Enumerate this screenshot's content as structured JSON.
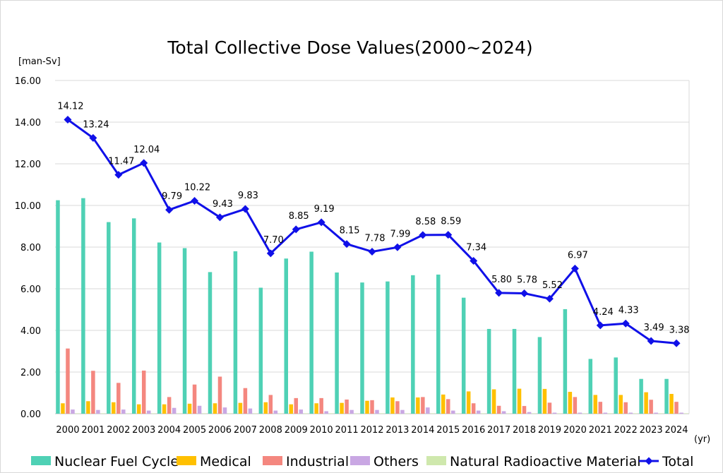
{
  "chart_data": {
    "type": "bar",
    "title": "Total Collective Dose Values(2000~2024)",
    "ylabel": "[man-Sv]",
    "xlabel": "(yr)",
    "ylim": [
      0,
      16
    ],
    "yticks": [
      "0.00",
      "2.00",
      "4.00",
      "6.00",
      "8.00",
      "10.00",
      "12.00",
      "14.00",
      "16.00"
    ],
    "categories": [
      "2000",
      "2001",
      "2002",
      "2003",
      "2004",
      "2005",
      "2006",
      "2007",
      "2008",
      "2009",
      "2010",
      "2011",
      "2012",
      "2013",
      "2014",
      "2015",
      "2016",
      "2017",
      "2018",
      "2019",
      "2020",
      "2021",
      "2022",
      "2023",
      "2024"
    ],
    "series": [
      {
        "name": "Nuclear Fuel Cycle",
        "type": "bar",
        "color": "#4fd1b5",
        "values": [
          10.25,
          10.35,
          9.2,
          9.38,
          8.22,
          7.95,
          6.8,
          7.8,
          6.05,
          7.45,
          7.78,
          6.78,
          6.3,
          6.35,
          6.65,
          6.68,
          5.57,
          4.07,
          4.07,
          3.68,
          5.02,
          2.63,
          2.7,
          1.67,
          1.67
        ]
      },
      {
        "name": "Medical",
        "type": "bar",
        "color": "#ffc000",
        "values": [
          0.5,
          0.6,
          0.55,
          0.45,
          0.45,
          0.48,
          0.5,
          0.52,
          0.55,
          0.45,
          0.5,
          0.52,
          0.62,
          0.78,
          0.78,
          0.92,
          1.07,
          1.17,
          1.2,
          1.19,
          1.05,
          0.9,
          0.9,
          1.03,
          0.95
        ]
      },
      {
        "name": "Industrial",
        "type": "bar",
        "color": "#f4877f",
        "values": [
          3.13,
          2.06,
          1.48,
          2.07,
          0.8,
          1.4,
          1.78,
          1.23,
          0.9,
          0.75,
          0.75,
          0.68,
          0.65,
          0.6,
          0.8,
          0.7,
          0.5,
          0.38,
          0.37,
          0.53,
          0.8,
          0.57,
          0.55,
          0.67,
          0.57
        ]
      },
      {
        "name": "Others",
        "type": "bar",
        "color": "#c9a7e3",
        "values": [
          0.2,
          0.18,
          0.2,
          0.15,
          0.28,
          0.38,
          0.3,
          0.25,
          0.15,
          0.2,
          0.12,
          0.18,
          0.18,
          0.18,
          0.3,
          0.15,
          0.15,
          0.12,
          0.08,
          0.05,
          0.05,
          0.05,
          0.05,
          0.05,
          0.05
        ]
      },
      {
        "name": "Natural Radioactive Material",
        "type": "bar",
        "color": "#cfe8ad",
        "values": [
          0.02,
          0.02,
          0.02,
          0.02,
          0.02,
          0.02,
          0.02,
          0.02,
          0.02,
          0.02,
          0.02,
          0.02,
          0.02,
          0.02,
          0.02,
          0.02,
          0.02,
          0.02,
          0.02,
          0.02,
          0.02,
          0.02,
          0.02,
          0.02,
          0.02
        ]
      },
      {
        "name": "Total",
        "type": "line",
        "color": "#1010e8",
        "values": [
          14.12,
          13.24,
          11.47,
          12.04,
          9.79,
          10.22,
          9.43,
          9.83,
          7.7,
          8.85,
          9.19,
          8.15,
          7.78,
          7.99,
          8.58,
          8.59,
          7.34,
          5.8,
          5.78,
          5.52,
          6.97,
          4.24,
          4.33,
          3.49,
          3.38
        ],
        "labels": [
          "14.12",
          "13.24",
          "11.47",
          "12.04",
          "9.79",
          "10.22",
          "9.43",
          "9.83",
          "7.70",
          "8.85",
          "9.19",
          "8.15",
          "7.78",
          "7.99",
          "8.58",
          "8.59",
          "7.34",
          "5.80",
          "5.78",
          "5.52",
          "6.97",
          "4.24",
          "4.33",
          "3.49",
          "3.38"
        ]
      }
    ],
    "grid": true,
    "legend": "bottom"
  }
}
